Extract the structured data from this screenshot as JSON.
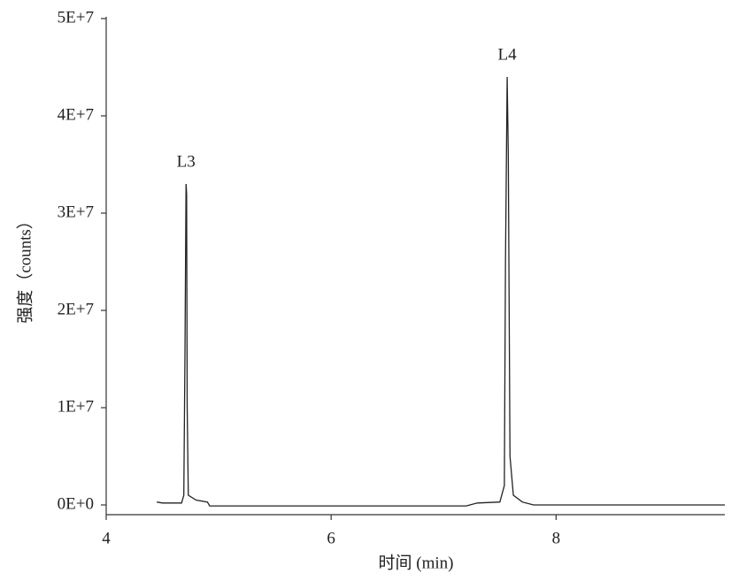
{
  "chart_data": {
    "type": "line",
    "xlabel": "时间 (min)",
    "ylabel": "强度（counts）",
    "x": [
      4.45,
      4.5,
      4.67,
      4.69,
      4.7,
      4.71,
      4.715,
      4.72,
      4.73,
      4.8,
      4.9,
      4.92,
      5.0,
      7.2,
      7.3,
      7.5,
      7.54,
      7.55,
      7.565,
      7.575,
      7.59,
      7.62,
      7.7,
      7.8,
      9.5
    ],
    "series": [
      {
        "color": "#222222",
        "values": [
          300000,
          200000,
          200000,
          1000000,
          15000000,
          33000000,
          32000000,
          10000000,
          1000000,
          500000,
          300000,
          -100000,
          -100000,
          -100000,
          200000,
          300000,
          2000000,
          25000000,
          44000000,
          36000000,
          5000000,
          1000000,
          300000,
          0,
          0
        ]
      }
    ],
    "annotations": [
      {
        "text": "L3",
        "x": 4.71
      },
      {
        "text": "L4",
        "x": 7.565
      }
    ],
    "xlim": [
      4,
      9.5
    ],
    "xticks": [
      4,
      6,
      8
    ],
    "ylim": [
      -1000000,
      50000000
    ],
    "yticks": [
      {
        "value": 0,
        "label": "0E+0"
      },
      {
        "value": 10000000,
        "label": "1E+7"
      },
      {
        "value": 20000000,
        "label": "2E+7"
      },
      {
        "value": 30000000,
        "label": "3E+7"
      },
      {
        "value": 40000000,
        "label": "4E+7"
      },
      {
        "value": 50000000,
        "label": "5E+7"
      }
    ]
  }
}
